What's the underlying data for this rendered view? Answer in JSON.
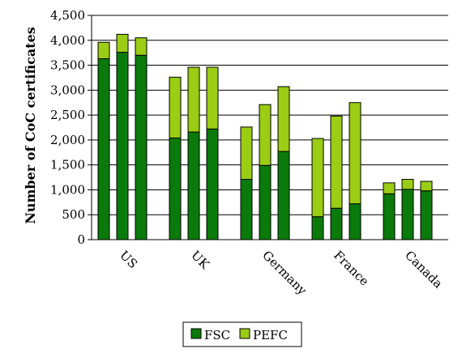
{
  "chart_data": {
    "type": "bar",
    "stacked": true,
    "categories": [
      "US",
      "UK",
      "Germany",
      "France",
      "Canada"
    ],
    "bars_per_category": 3,
    "series": [
      {
        "name": "FSC",
        "color": "#0a7a0a",
        "values": [
          [
            3630,
            3760,
            3700
          ],
          [
            2040,
            2160,
            2220
          ],
          [
            1210,
            1490,
            1770
          ],
          [
            460,
            630,
            720
          ],
          [
            920,
            1010,
            980
          ]
        ]
      },
      {
        "name": "PEFC",
        "color": "#9acd13",
        "values": [
          [
            330,
            360,
            350
          ],
          [
            1220,
            1300,
            1240
          ],
          [
            1050,
            1220,
            1300
          ],
          [
            1570,
            1850,
            2030
          ],
          [
            220,
            200,
            190
          ]
        ]
      }
    ],
    "ylabel": "Number of CoC certificates",
    "ylim": [
      0,
      4500
    ],
    "yticks": [
      "0",
      "500",
      "1,000",
      "1,500",
      "2,000",
      "2,500",
      "3,000",
      "3,500",
      "4,000",
      "4,500"
    ],
    "grid": true,
    "legend": "bottom"
  }
}
